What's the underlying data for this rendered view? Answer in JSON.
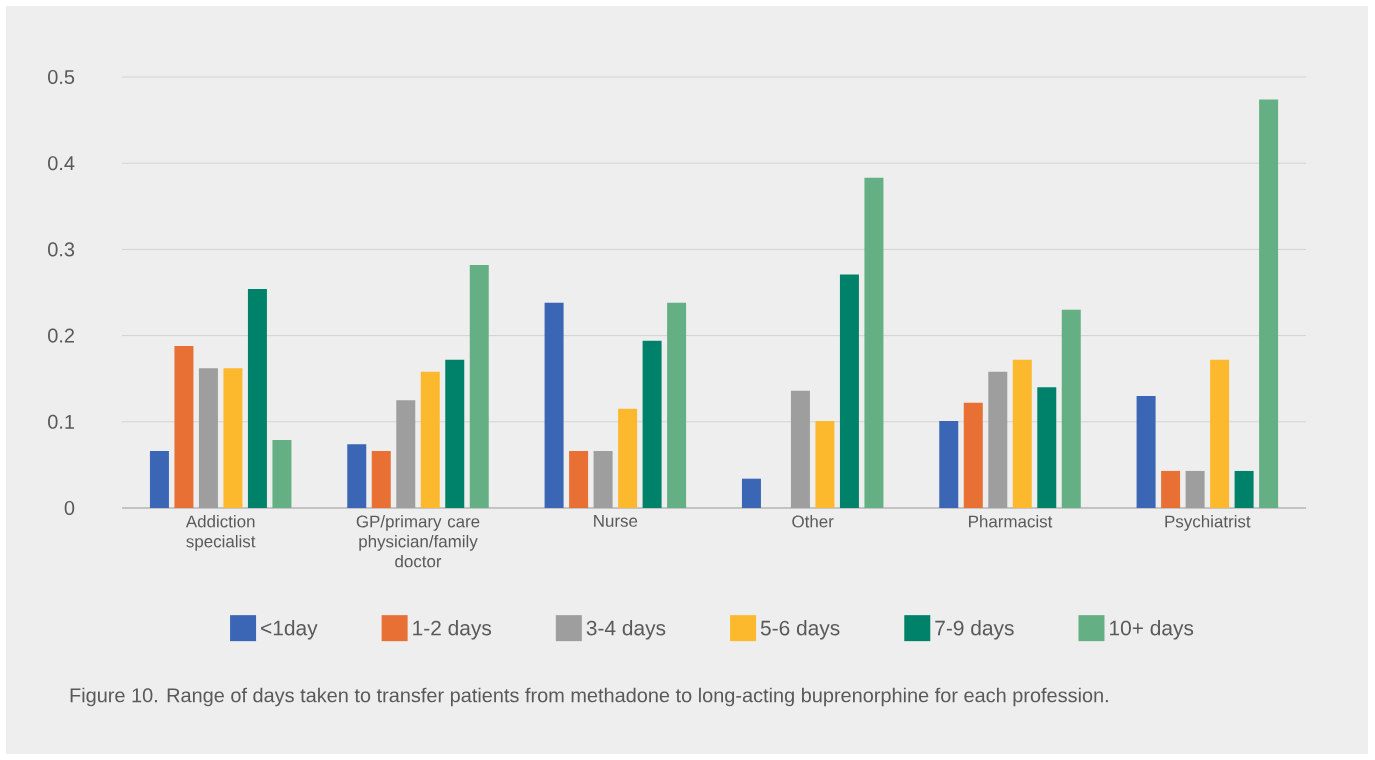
{
  "chart_data": {
    "type": "bar",
    "categories": [
      "Addiction specialist",
      "GP/primary care physician/family doctor",
      "Nurse",
      "Other",
      "Pharmacist",
      "Psychiatrist"
    ],
    "series": [
      {
        "name": "<1day",
        "color": "#3a66b5",
        "values": [
          0.066,
          0.074,
          0.238,
          0.034,
          0.101,
          0.13
        ]
      },
      {
        "name": "1-2 days",
        "color": "#e87035",
        "values": [
          0.188,
          0.066,
          0.066,
          0,
          0.122,
          0.043
        ]
      },
      {
        "name": "3-4 days",
        "color": "#9e9e9e",
        "values": [
          0.162,
          0.125,
          0.066,
          0.136,
          0.158,
          0.043
        ]
      },
      {
        "name": "5-6 days",
        "color": "#fdb92e",
        "values": [
          0.162,
          0.158,
          0.115,
          0.101,
          0.172,
          0.172
        ]
      },
      {
        "name": "7-9 days",
        "color": "#00826a",
        "values": [
          0.254,
          0.172,
          0.194,
          0.271,
          0.14,
          0.043
        ]
      },
      {
        "name": "10+ days",
        "color": "#64b084",
        "values": [
          0.079,
          0.282,
          0.238,
          0.383,
          0.23,
          0.474
        ]
      }
    ],
    "ylim": [
      0,
      0.5
    ],
    "yticks": [
      0,
      0.1,
      0.2,
      0.3,
      0.4,
      0.5
    ],
    "grid": "y",
    "legend": "bottom",
    "annotations": [
      "Figure 10. Range of days taken to transfer patients from methadone to long-acting buprenorphine for each profession."
    ]
  }
}
